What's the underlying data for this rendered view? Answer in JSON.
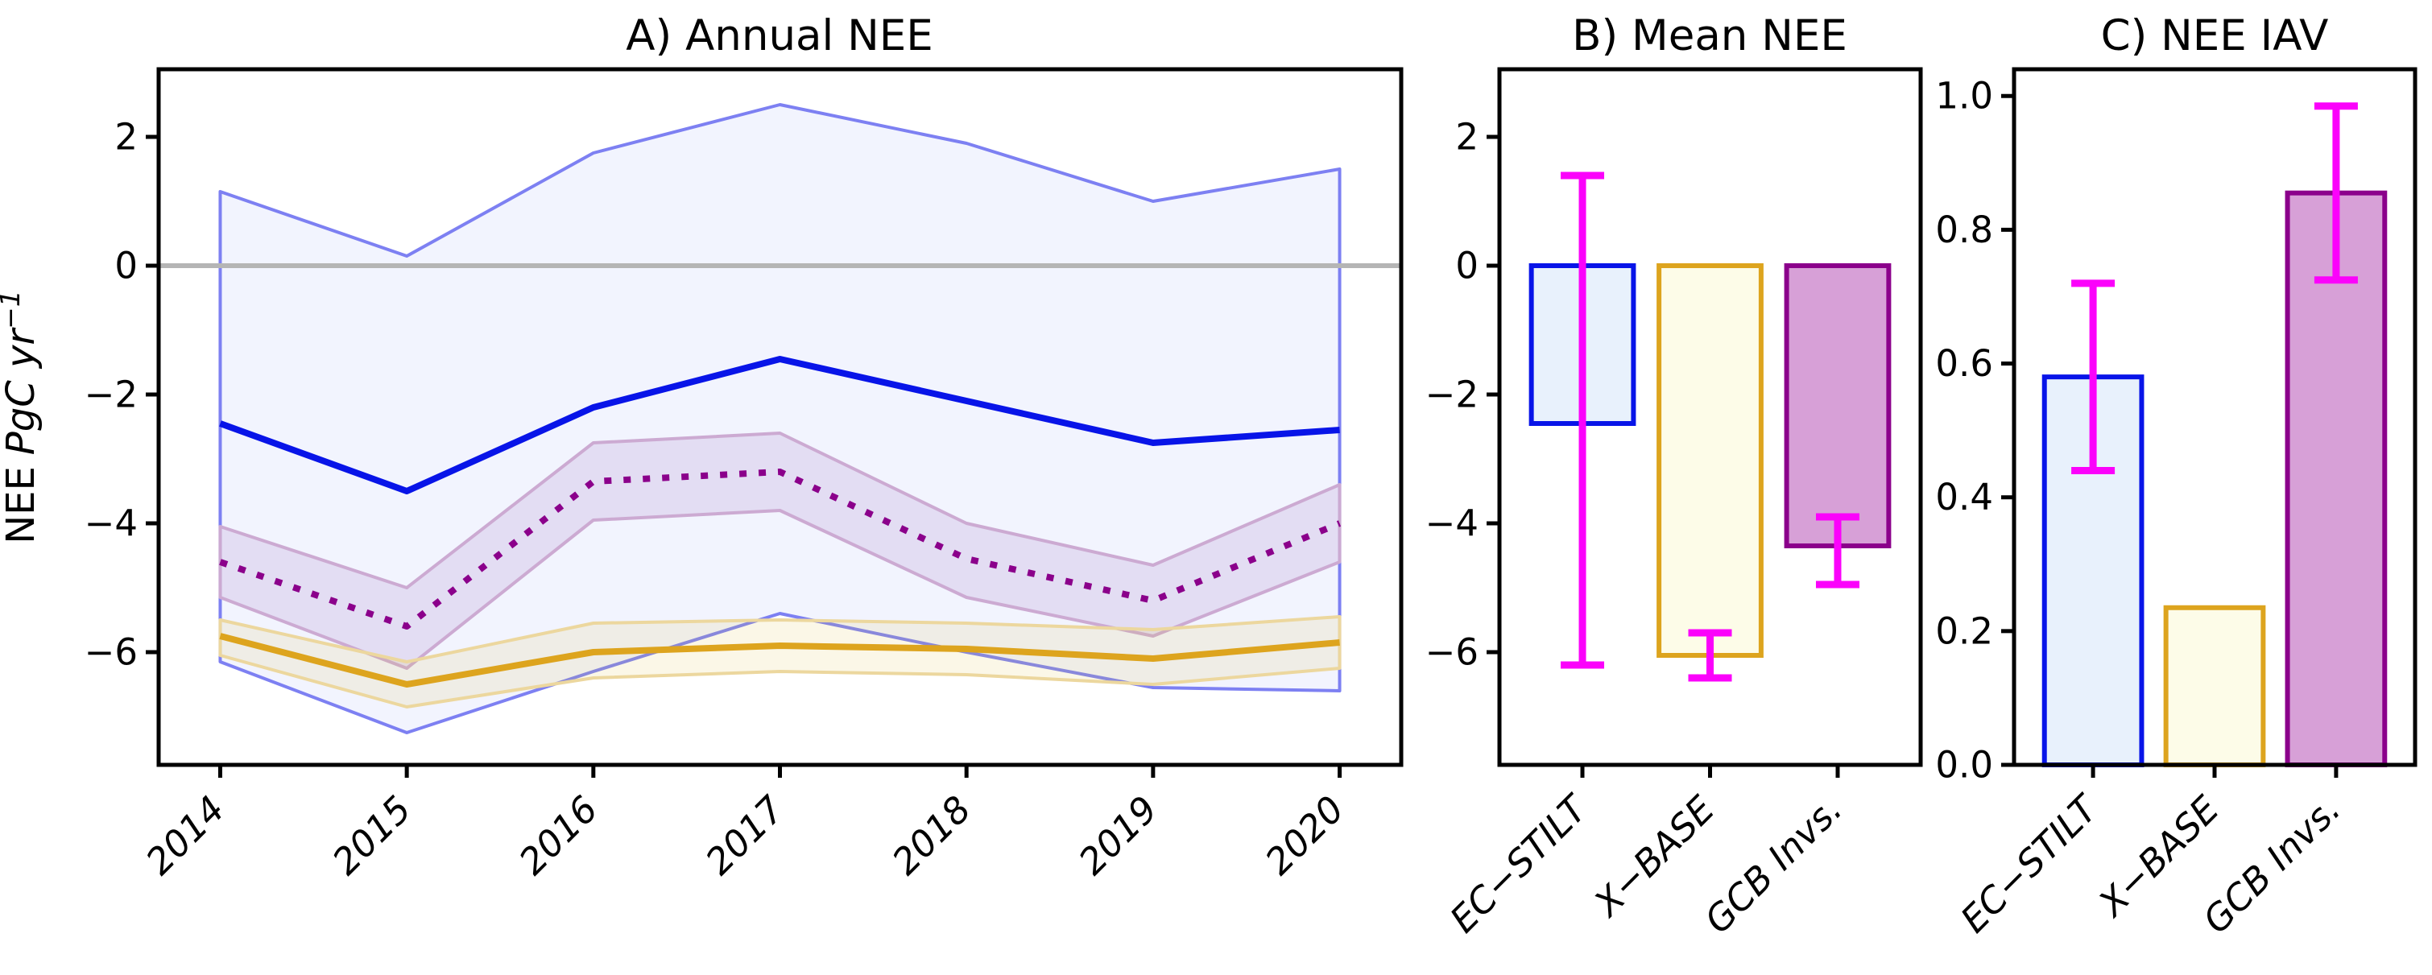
{
  "figure": {
    "background": "#ffffff",
    "error_bar_color": "#fb02fb",
    "zero_line_color": "#b5b5b5",
    "axis_color": "#000000"
  },
  "chart_data": [
    {
      "id": "a",
      "type": "line",
      "title": "A) Annual NEE",
      "ylabel": {
        "prefix": "NEE",
        "italic": "PgC yr",
        "superscript": "−1"
      },
      "years": [
        2014,
        2015,
        2016,
        2017,
        2018,
        2019,
        2020
      ],
      "yticks": [
        2,
        0,
        -2,
        -4,
        -6
      ],
      "ylim": [
        -7.75,
        3.05
      ],
      "xlim": [
        2013.67,
        2020.33
      ],
      "zero_line": 0,
      "grid": false,
      "series": [
        {
          "name": "X-BASE",
          "line_color": "#dda41e",
          "band_edge_color": "#ecd79e",
          "band_fill_color": "rgba(225,195,70,0.13)",
          "line_style": "solid",
          "mean": [
            -5.75,
            -6.5,
            -6.0,
            -5.9,
            -5.95,
            -6.1,
            -5.85
          ],
          "upper": [
            -5.5,
            -6.15,
            -5.55,
            -5.5,
            -5.55,
            -5.65,
            -5.45
          ],
          "lower": [
            -6.05,
            -6.85,
            -6.4,
            -6.3,
            -6.35,
            -6.5,
            -6.25
          ]
        },
        {
          "name": "GCB Invs.",
          "line_color": "#8b008b",
          "band_edge_color": "#ccaad2",
          "band_fill_color": "rgba(145,85,175,0.14)",
          "line_style": "dotted",
          "mean": [
            -4.6,
            -5.6,
            -3.35,
            -3.2,
            -4.55,
            -5.2,
            -4.0
          ],
          "upper": [
            -4.05,
            -5.0,
            -2.75,
            -2.6,
            -4.0,
            -4.65,
            -3.4
          ],
          "lower": [
            -5.15,
            -6.25,
            -3.95,
            -3.8,
            -5.15,
            -5.75,
            -4.6
          ]
        },
        {
          "name": "EC-STILT",
          "line_color": "#0814e8",
          "band_edge_color": "#7d80f2",
          "band_fill_color": "rgba(70,95,235,0.07)",
          "line_style": "solid",
          "mean": [
            -2.45,
            -3.5,
            -2.2,
            -1.45,
            -2.1,
            -2.75,
            -2.55
          ],
          "upper": [
            1.15,
            0.15,
            1.75,
            2.5,
            1.9,
            1.0,
            1.5
          ],
          "lower": [
            -6.15,
            -7.25,
            -6.3,
            -5.4,
            -6.0,
            -6.55,
            -6.6
          ]
        }
      ]
    },
    {
      "id": "b",
      "type": "bar",
      "title": "B) Mean NEE",
      "categories": [
        "EC-STILT",
        "X-BASE",
        "GCB Invs."
      ],
      "values": [
        -2.45,
        -6.05,
        -4.35
      ],
      "error_bars": [
        {
          "hi": 1.4,
          "lo": -6.2
        },
        {
          "hi": -5.7,
          "lo": -6.4
        },
        {
          "hi": -3.9,
          "lo": -4.95
        }
      ],
      "bar_fill": [
        "#e8f1fc",
        "#fdfce8",
        "#d7a0d7"
      ],
      "bar_edge": [
        "#0814e8",
        "#dda41e",
        "#8b008b"
      ],
      "yticks": [
        2,
        0,
        -2,
        -4,
        -6
      ],
      "ylim": [
        -7.75,
        3.05
      ],
      "tick_format": "int"
    },
    {
      "id": "c",
      "type": "bar",
      "title": "C) NEE IAV",
      "categories": [
        "EC-STILT",
        "X-BASE",
        "GCB Invs."
      ],
      "values": [
        0.58,
        0.235,
        0.855
      ],
      "error_bars": [
        {
          "hi": 0.72,
          "lo": 0.44
        },
        null,
        {
          "hi": 0.985,
          "lo": 0.725
        }
      ],
      "bar_fill": [
        "#e8f1fc",
        "#fdfce8",
        "#d7a0d7"
      ],
      "bar_edge": [
        "#0814e8",
        "#dda41e",
        "#8b008b"
      ],
      "yticks": [
        0,
        0.2,
        0.4,
        0.6,
        0.8,
        1.0
      ],
      "ylim": [
        0,
        1.04
      ],
      "tick_format": "1f"
    }
  ]
}
